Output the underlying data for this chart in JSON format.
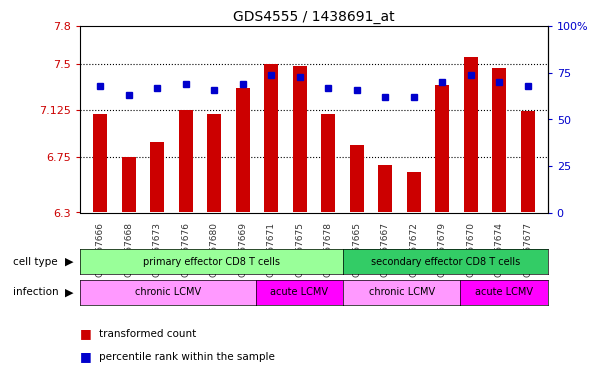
{
  "title": "GDS4555 / 1438691_at",
  "samples": [
    "GSM767666",
    "GSM767668",
    "GSM767673",
    "GSM767676",
    "GSM767680",
    "GSM767669",
    "GSM767671",
    "GSM767675",
    "GSM767678",
    "GSM767665",
    "GSM767667",
    "GSM767672",
    "GSM767679",
    "GSM767670",
    "GSM767674",
    "GSM767677"
  ],
  "bar_values": [
    7.09,
    6.75,
    6.87,
    7.125,
    7.09,
    7.3,
    7.5,
    7.48,
    7.09,
    6.84,
    6.68,
    6.63,
    7.33,
    7.55,
    7.46,
    7.12
  ],
  "dot_values": [
    68,
    63,
    67,
    69,
    66,
    69,
    74,
    73,
    67,
    66,
    62,
    62,
    70,
    74,
    70,
    68
  ],
  "ylim_left": [
    6.3,
    7.8
  ],
  "ylim_right": [
    0,
    100
  ],
  "yticks_left": [
    6.3,
    6.75,
    7.125,
    7.5,
    7.8
  ],
  "yticks_left_labels": [
    "6.3",
    "6.75",
    "7.125",
    "7.5",
    "7.8"
  ],
  "yticks_right": [
    0,
    25,
    50,
    75,
    100
  ],
  "yticks_right_labels": [
    "0",
    "25",
    "50",
    "75",
    "100%"
  ],
  "bar_color": "#cc0000",
  "dot_color": "#0000cc",
  "cell_type_groups": [
    {
      "label": "primary effector CD8 T cells",
      "start": 0,
      "end": 9,
      "color": "#99ff99"
    },
    {
      "label": "secondary effector CD8 T cells",
      "start": 9,
      "end": 16,
      "color": "#33cc66"
    }
  ],
  "infection_groups": [
    {
      "label": "chronic LCMV",
      "start": 0,
      "end": 6,
      "color": "#ff99ff"
    },
    {
      "label": "acute LCMV",
      "start": 6,
      "end": 9,
      "color": "#ff00ff"
    },
    {
      "label": "chronic LCMV",
      "start": 9,
      "end": 13,
      "color": "#ff99ff"
    },
    {
      "label": "acute LCMV",
      "start": 13,
      "end": 16,
      "color": "#ff00ff"
    }
  ],
  "legend_items": [
    {
      "label": "transformed count",
      "color": "#cc0000"
    },
    {
      "label": "percentile rank within the sample",
      "color": "#0000cc"
    }
  ],
  "cell_type_label": "cell type",
  "infection_label": "infection",
  "bg_color": "#ffffff",
  "bar_width": 0.5
}
